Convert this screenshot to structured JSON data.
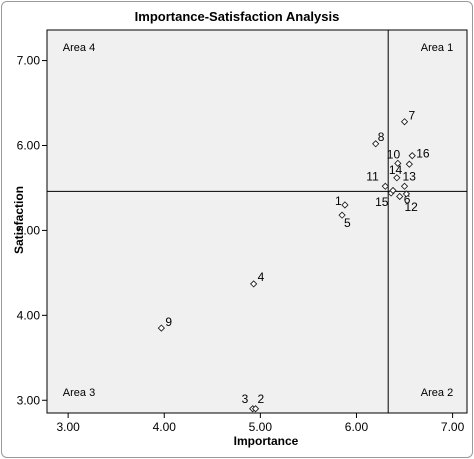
{
  "chart_data": {
    "type": "scatter",
    "title": "Importance-Satisfaction Analysis",
    "xlabel": "Importance",
    "ylabel": "Satisfaction",
    "xlim": [
      2.78,
      7.15
    ],
    "ylim": [
      2.85,
      7.36
    ],
    "x_ticks": [
      3.0,
      4.0,
      5.0,
      6.0,
      7.0
    ],
    "x_tick_labels": [
      "3.00",
      "4.00",
      "5.00",
      "6.00",
      "7.00"
    ],
    "y_ticks": [
      3.0,
      4.0,
      5.0,
      6.0,
      7.0
    ],
    "y_tick_labels": [
      "3.00",
      "4.00",
      "5.00",
      "6.00",
      "7.00"
    ],
    "reference_lines": {
      "x": 6.33,
      "y": 5.46
    },
    "quadrant_labels": [
      {
        "text": "Area 4",
        "corner": "top-left"
      },
      {
        "text": "Area 1",
        "corner": "top-right"
      },
      {
        "text": "Area 3",
        "corner": "bottom-left"
      },
      {
        "text": "Area 2",
        "corner": "bottom-right"
      }
    ],
    "marker": "diamond",
    "grid": false,
    "points": [
      {
        "label": "1",
        "x": 5.88,
        "y": 5.3
      },
      {
        "label": "5",
        "x": 5.85,
        "y": 5.18
      },
      {
        "label": "4",
        "x": 4.93,
        "y": 4.37
      },
      {
        "label": "9",
        "x": 3.97,
        "y": 3.85
      },
      {
        "label": "3",
        "x": 4.92,
        "y": 2.9
      },
      {
        "label": "2",
        "x": 4.95,
        "y": 2.9
      },
      {
        "label": "7",
        "x": 6.5,
        "y": 6.28
      },
      {
        "label": "8",
        "x": 6.2,
        "y": 6.02
      },
      {
        "label": "10",
        "x": 6.43,
        "y": 5.79
      },
      {
        "label": "16",
        "x": 6.58,
        "y": 5.88
      },
      {
        "label": "14",
        "x": 6.42,
        "y": 5.62
      },
      {
        "label": "13",
        "x": 6.5,
        "y": 5.52
      },
      {
        "label": "11",
        "x": 6.3,
        "y": 5.52
      },
      {
        "label": "6",
        "x": 6.45,
        "y": 5.4
      },
      {
        "label": "15",
        "x": 6.36,
        "y": 5.44
      },
      {
        "label": "12",
        "x": 6.52,
        "y": 5.43
      },
      {
        "label": "",
        "x": 6.55,
        "y": 5.78
      },
      {
        "label": "",
        "x": 6.38,
        "y": 5.47
      }
    ]
  }
}
